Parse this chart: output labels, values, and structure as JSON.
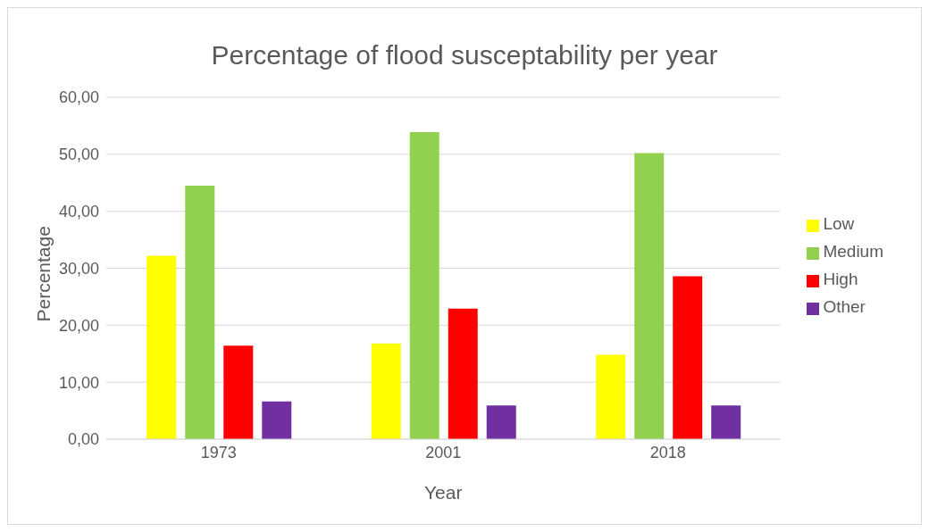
{
  "chart_data": {
    "type": "bar",
    "title": "Percentage of flood susceptability per year",
    "xlabel": "Year",
    "ylabel": "Percentage",
    "categories": [
      "1973",
      "2001",
      "2018"
    ],
    "series": [
      {
        "name": "Low",
        "color": "#ffff00",
        "values": [
          32.2,
          16.8,
          14.8
        ]
      },
      {
        "name": "Medium",
        "color": "#92d050",
        "values": [
          44.5,
          53.9,
          50.2
        ]
      },
      {
        "name": "High",
        "color": "#ff0000",
        "values": [
          16.4,
          22.9,
          28.6
        ]
      },
      {
        "name": "Other",
        "color": "#7030a0",
        "values": [
          6.6,
          5.9,
          5.9
        ]
      }
    ],
    "ylim": [
      0,
      60
    ],
    "yticks": [
      {
        "value": 0,
        "label": "0,00"
      },
      {
        "value": 10,
        "label": "10,00"
      },
      {
        "value": 20,
        "label": "20,00"
      },
      {
        "value": 30,
        "label": "30,00"
      },
      {
        "value": 40,
        "label": "40,00"
      },
      {
        "value": 50,
        "label": "50,00"
      },
      {
        "value": 60,
        "label": "60,00"
      }
    ],
    "grid": "y",
    "legend": "right"
  }
}
